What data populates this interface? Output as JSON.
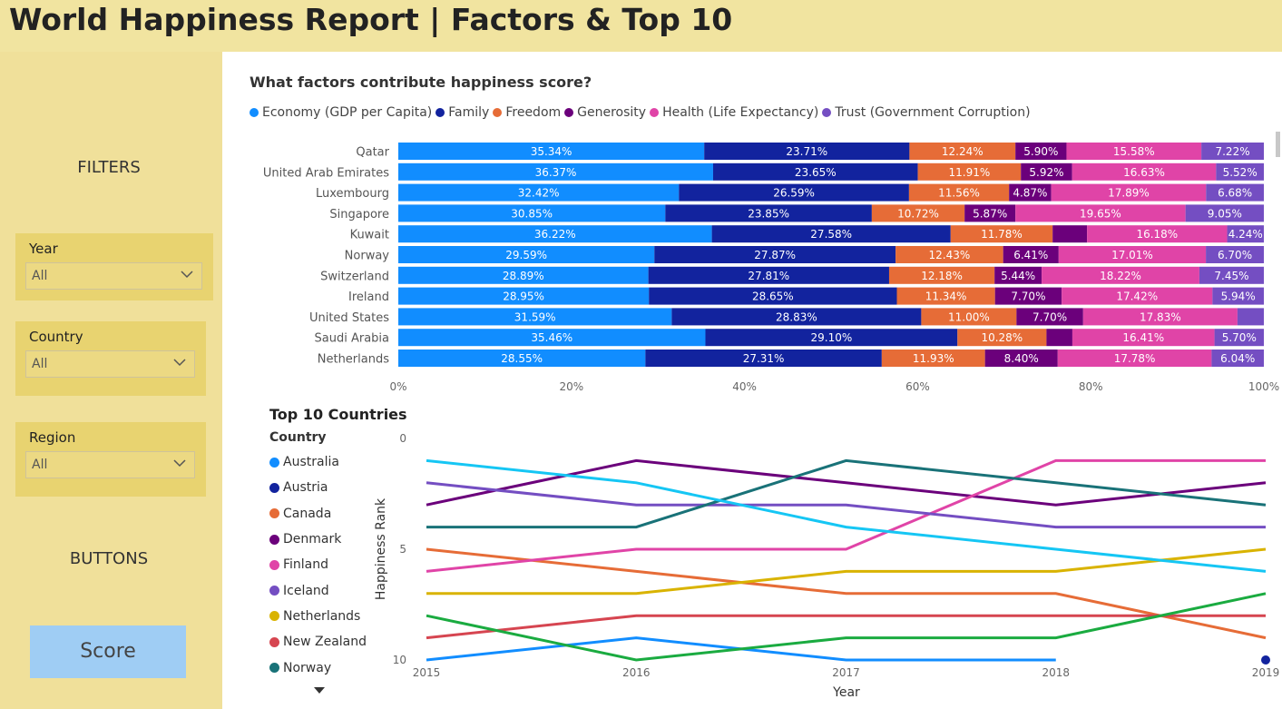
{
  "header": {
    "title": "World Happiness Report | Factors & Top 10"
  },
  "sidebar": {
    "filters_label": "FILTERS",
    "buttons_label": "BUTTONS",
    "filters": [
      {
        "label": "Year",
        "value": "All"
      },
      {
        "label": "Country",
        "value": "All"
      },
      {
        "label": "Region",
        "value": "All"
      }
    ],
    "score_button": "Score"
  },
  "colors": {
    "economy": "#118dff",
    "family": "#12239e",
    "freedom": "#e66c37",
    "generosity": "#6b007b",
    "health": "#e044a7",
    "trust": "#744ec2"
  },
  "chart_data": [
    {
      "type": "bar",
      "orientation": "horizontal-stacked-100",
      "title": "What factors contribute happiness score?",
      "series_names": [
        "Economy (GDP per Capita)",
        "Family",
        "Freedom",
        "Generosity",
        "Health (Life Expectancy)",
        "Trust (Government Corruption)"
      ],
      "series_colors": [
        "#118dff",
        "#12239e",
        "#e66c37",
        "#6b007b",
        "#e044a7",
        "#744ec2"
      ],
      "categories": [
        "Qatar",
        "United Arab Emirates",
        "Luxembourg",
        "Singapore",
        "Kuwait",
        "Norway",
        "Switzerland",
        "Ireland",
        "United States",
        "Saudi Arabia",
        "Netherlands"
      ],
      "values": [
        [
          35.34,
          23.71,
          12.24,
          5.9,
          15.58,
          7.22
        ],
        [
          36.37,
          23.65,
          11.91,
          5.92,
          16.63,
          5.52
        ],
        [
          32.42,
          26.59,
          11.56,
          4.87,
          17.89,
          6.68
        ],
        [
          30.85,
          23.85,
          10.72,
          5.87,
          19.65,
          9.05
        ],
        [
          36.22,
          27.58,
          11.78,
          3.98,
          16.18,
          4.24
        ],
        [
          29.59,
          27.87,
          12.43,
          6.41,
          17.01,
          6.7
        ],
        [
          28.89,
          27.81,
          12.18,
          5.44,
          18.22,
          7.45
        ],
        [
          28.95,
          28.65,
          11.34,
          7.7,
          17.42,
          5.94
        ],
        [
          31.59,
          28.83,
          11.0,
          7.7,
          17.83,
          3.05
        ],
        [
          35.46,
          29.1,
          10.28,
          2.99,
          16.41,
          5.7
        ],
        [
          28.55,
          27.31,
          11.93,
          8.4,
          17.78,
          6.04
        ]
      ],
      "labels": [
        [
          "35.34%",
          "23.71%",
          "12.24%",
          "5.90%",
          "15.58%",
          "7.22%"
        ],
        [
          "36.37%",
          "23.65%",
          "11.91%",
          "5.92%",
          "16.63%",
          "5.52%"
        ],
        [
          "32.42%",
          "26.59%",
          "11.56%",
          "4.87%",
          "17.89%",
          "6.68%"
        ],
        [
          "30.85%",
          "23.85%",
          "10.72%",
          "5.87%",
          "19.65%",
          "9.05%"
        ],
        [
          "36.22%",
          "27.58%",
          "11.78%",
          "",
          "16.18%",
          "4.24%"
        ],
        [
          "29.59%",
          "27.87%",
          "12.43%",
          "6.41%",
          "17.01%",
          "6.70%"
        ],
        [
          "28.89%",
          "27.81%",
          "12.18%",
          "5.44%",
          "18.22%",
          "7.45%"
        ],
        [
          "28.95%",
          "28.65%",
          "11.34%",
          "7.70%",
          "17.42%",
          "5.94%"
        ],
        [
          "31.59%",
          "28.83%",
          "11.00%",
          "7.70%",
          "17.83%",
          ""
        ],
        [
          "35.46%",
          "29.10%",
          "10.28%",
          "",
          "16.41%",
          "5.70%"
        ],
        [
          "28.55%",
          "27.31%",
          "11.93%",
          "8.40%",
          "17.78%",
          "6.04%"
        ]
      ],
      "x_ticks": [
        "0%",
        "20%",
        "40%",
        "60%",
        "80%",
        "100%"
      ],
      "xlim": [
        0,
        100
      ]
    },
    {
      "type": "line",
      "title": "Top 10 Countries",
      "legend_title": "Country",
      "xlabel": "Year",
      "ylabel": "Happiness Rank",
      "x": [
        2015,
        2016,
        2017,
        2018,
        2019
      ],
      "x_ticks": [
        "2015",
        "2016",
        "2017",
        "2018",
        "2019"
      ],
      "y_ticks": [
        "0",
        "5",
        "10"
      ],
      "ylim": [
        0,
        10
      ],
      "y_inverted": true,
      "series": [
        {
          "name": "Australia",
          "color": "#118dff",
          "values": [
            10,
            9,
            10,
            10,
            null
          ]
        },
        {
          "name": "Austria",
          "color": "#12239e",
          "values": [
            null,
            null,
            null,
            null,
            10
          ]
        },
        {
          "name": "Canada",
          "color": "#e66c37",
          "values": [
            5,
            6,
            7,
            7,
            9
          ]
        },
        {
          "name": "Denmark",
          "color": "#6b007b",
          "values": [
            3,
            1,
            2,
            3,
            2
          ]
        },
        {
          "name": "Finland",
          "color": "#e044a7",
          "values": [
            6,
            5,
            5,
            1,
            1
          ]
        },
        {
          "name": "Iceland",
          "color": "#744ec2",
          "values": [
            2,
            3,
            3,
            4,
            4
          ]
        },
        {
          "name": "Netherlands",
          "color": "#d9b300",
          "values": [
            7,
            7,
            6,
            6,
            5
          ]
        },
        {
          "name": "New Zealand",
          "color": "#d64550",
          "values": [
            9,
            8,
            8,
            8,
            8
          ]
        },
        {
          "name": "Norway",
          "color": "#197278",
          "values": [
            4,
            4,
            1,
            2,
            3
          ]
        },
        {
          "name": "",
          "color": "#1aab40",
          "values": [
            8,
            10,
            9,
            9,
            7
          ]
        },
        {
          "name": "",
          "color": "#15c6f4",
          "values": [
            1,
            2,
            4,
            5,
            6
          ]
        }
      ]
    }
  ]
}
